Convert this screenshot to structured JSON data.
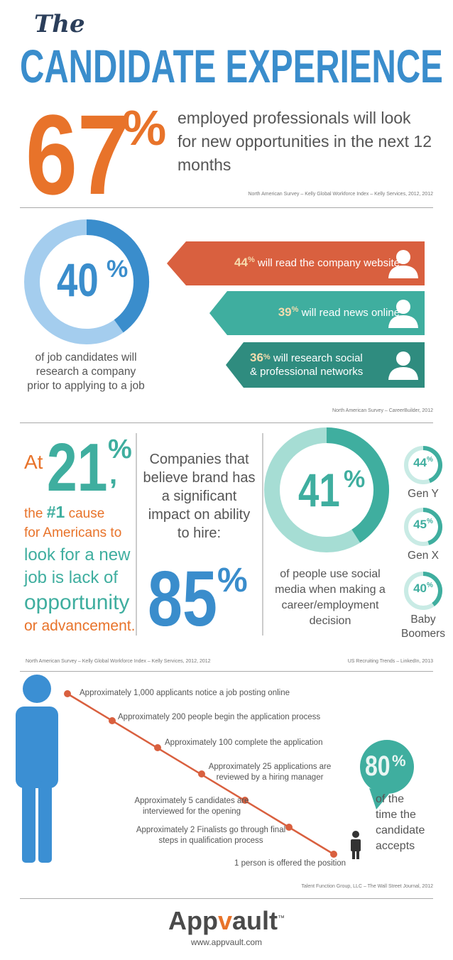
{
  "header": {
    "the": "The",
    "title": "CANDIDATE EXPERIENCE"
  },
  "stat1": {
    "value": 67,
    "unit": "%",
    "text": "employed professionals will look for new opportunities in the next 12 months",
    "source": "North American Survey – Kelly Global Workforce Index – Kelly Services, 2012, 2012"
  },
  "research": {
    "value": 40,
    "unit": "%",
    "text": "of job candidates will research a company prior to applying to a job",
    "items": [
      {
        "value": 44,
        "unit": "%",
        "text": "will read the company website"
      },
      {
        "value": 39,
        "unit": "%",
        "text": "will read news online"
      },
      {
        "value": 36,
        "unit": "%",
        "text": [
          "will research social",
          "& professional networks"
        ]
      }
    ],
    "source": "North American Survey – CareerBuilder, 2012"
  },
  "cause": {
    "at": "At",
    "value": 21,
    "unit": "%",
    "comma": ",",
    "lines": [
      "the",
      "#1",
      "cause",
      "for Americans to",
      "look for a new",
      "job is lack of",
      "opportunity",
      "or advancement."
    ],
    "source": "North American Survey – Kelly Global Workforce Index – Kelly Services, 2012, 2012"
  },
  "brand": {
    "text": "Companies that believe brand has a significant impact on ability to hire:",
    "value": 85,
    "unit": "%"
  },
  "social": {
    "value": 41,
    "unit": "%",
    "text": "of people use social media when making a career/employment decision",
    "groups": [
      {
        "value": 44,
        "unit": "%",
        "label": "Gen Y"
      },
      {
        "value": 45,
        "unit": "%",
        "label": "Gen X"
      },
      {
        "value": 40,
        "unit": "%",
        "label": "Baby Boomers"
      }
    ],
    "source": "US Recruiting Trends – LinkedIn, 2013"
  },
  "funnel": {
    "steps": [
      "Approximately 1,000 applicants notice a job posting online",
      "Approximately 200 people begin the application process",
      "Approximately 100 complete the application",
      "Approximately 25 applications are reviewed by a hiring manager",
      "Approximately 5 candidates are interviewed for the opening",
      "Approximately 2 Finalists go through final steps in qualification process",
      "1 person is offered the position"
    ],
    "value": 80,
    "unit": "%",
    "text": "of the time the candidate accepts",
    "source": "Talent Function Group, LLC – The Wall Street Journal, 2012"
  },
  "footer": {
    "logo": [
      "App",
      "v",
      "ault"
    ],
    "tm": "™",
    "url": "www.appvault.com"
  }
}
